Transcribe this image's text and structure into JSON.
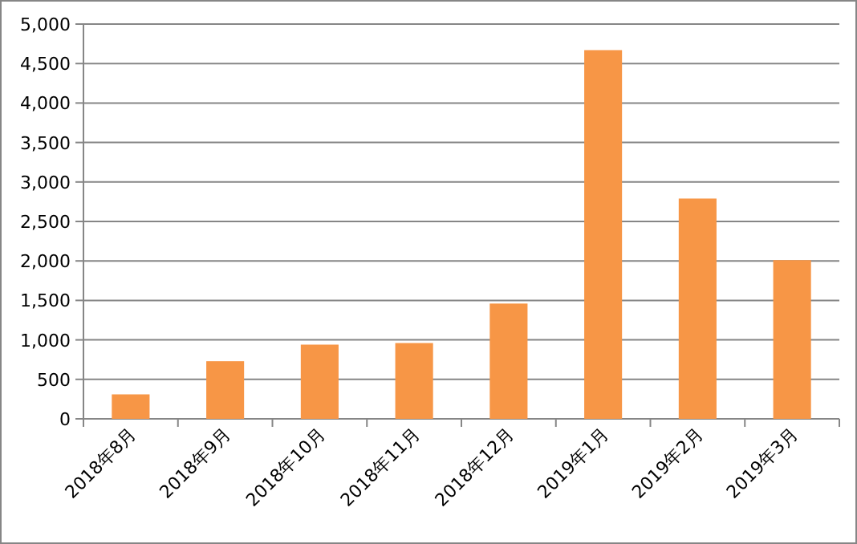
{
  "chart_data": {
    "type": "bar",
    "categories": [
      "2018年8月",
      "2018年9月",
      "2018年10月",
      "2018年11月",
      "2018年12月",
      "2019年1月",
      "2019年2月",
      "2019年3月"
    ],
    "values": [
      310,
      730,
      940,
      960,
      1460,
      4670,
      2790,
      2010
    ],
    "color": "#f79646",
    "ylim": [
      0,
      5000
    ],
    "yticks": [
      {
        "value": 0,
        "label": "0"
      },
      {
        "value": 500,
        "label": "500"
      },
      {
        "value": 1000,
        "label": "1,000"
      },
      {
        "value": 1500,
        "label": "1,500"
      },
      {
        "value": 2000,
        "label": "2,000"
      },
      {
        "value": 2500,
        "label": "2,500"
      },
      {
        "value": 3000,
        "label": "3,000"
      },
      {
        "value": 3500,
        "label": "3,500"
      },
      {
        "value": 4000,
        "label": "4,000"
      },
      {
        "value": 4500,
        "label": "4,500"
      },
      {
        "value": 5000,
        "label": "5,000"
      }
    ],
    "grid": "y"
  }
}
